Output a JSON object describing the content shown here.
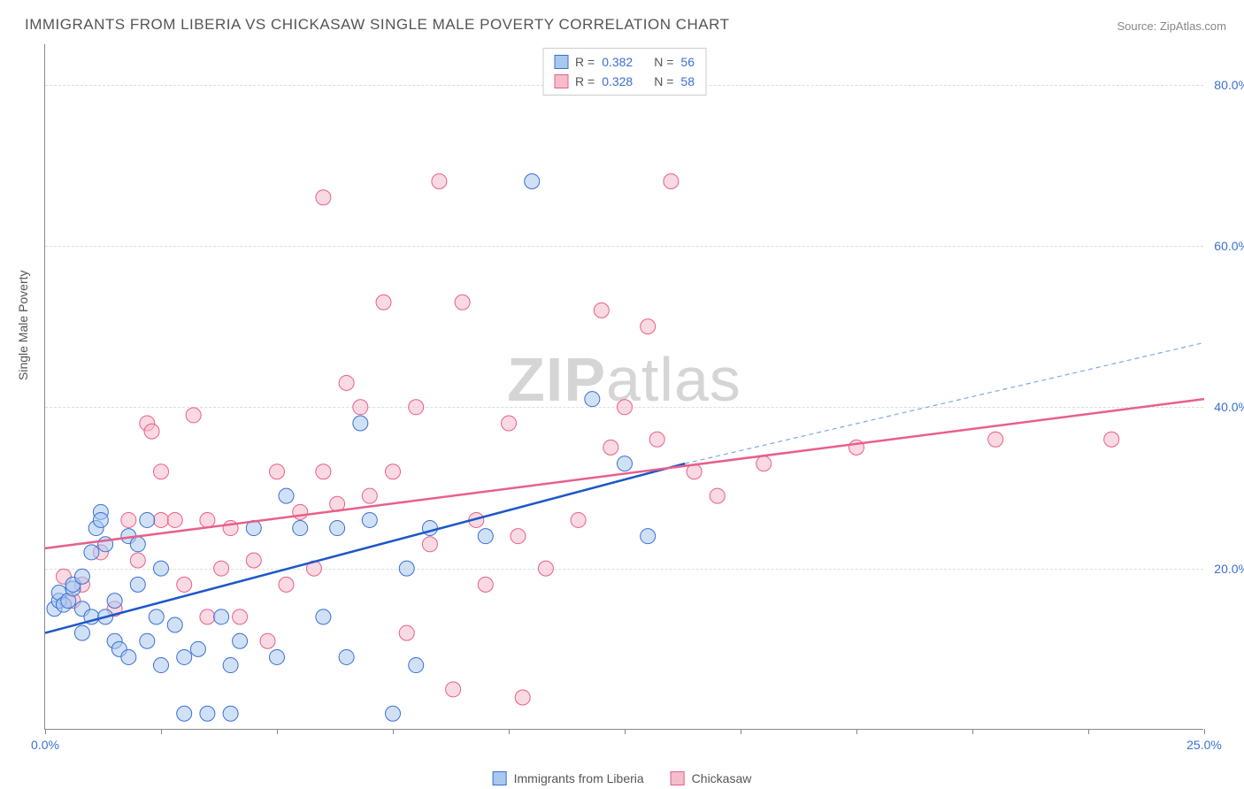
{
  "title": "IMMIGRANTS FROM LIBERIA VS CHICKASAW SINGLE MALE POVERTY CORRELATION CHART",
  "source_prefix": "Source: ",
  "source": "ZipAtlas.com",
  "ylabel": "Single Male Poverty",
  "watermark_bold": "ZIP",
  "watermark_rest": "atlas",
  "chart": {
    "type": "scatter",
    "xlim": [
      0,
      25
    ],
    "ylim": [
      0,
      85
    ],
    "x_ticks": [
      0,
      2.5,
      5,
      7.5,
      10,
      12.5,
      15,
      17.5,
      20,
      22.5,
      25
    ],
    "x_tick_labels": {
      "0": "0.0%",
      "25": "25.0%"
    },
    "y_ticks": [
      20,
      40,
      60,
      80
    ],
    "y_tick_labels": [
      "20.0%",
      "40.0%",
      "60.0%",
      "80.0%"
    ],
    "grid_color": "#dddddd",
    "background_color": "#ffffff",
    "series": [
      {
        "name": "Immigrants from Liberia",
        "fill": "#a9c8ef",
        "stroke": "#3b6fd4",
        "fill_opacity": 0.55,
        "marker_radius": 8.5,
        "R": "0.382",
        "N": "56",
        "trend": {
          "x1": 0,
          "y1": 12,
          "x2": 13.8,
          "y2": 33,
          "color": "#1d57c8",
          "width": 2.5
        },
        "trend_ext": {
          "x1": 13.8,
          "y1": 33,
          "x2": 25,
          "y2": 48,
          "color": "#7fa7e5",
          "width": 1.2,
          "dash": "5,4"
        },
        "points": [
          [
            0.2,
            15
          ],
          [
            0.3,
            16
          ],
          [
            0.3,
            17
          ],
          [
            0.4,
            15.5
          ],
          [
            0.5,
            16
          ],
          [
            0.6,
            17.5
          ],
          [
            0.6,
            18
          ],
          [
            0.8,
            12
          ],
          [
            0.8,
            15
          ],
          [
            0.8,
            19
          ],
          [
            1.0,
            22
          ],
          [
            1.0,
            14
          ],
          [
            1.1,
            25
          ],
          [
            1.2,
            27
          ],
          [
            1.2,
            26
          ],
          [
            1.3,
            23
          ],
          [
            1.3,
            14
          ],
          [
            1.5,
            11
          ],
          [
            1.5,
            16
          ],
          [
            1.6,
            10
          ],
          [
            1.8,
            9
          ],
          [
            1.8,
            24
          ],
          [
            2.0,
            18
          ],
          [
            2.0,
            23
          ],
          [
            2.2,
            26
          ],
          [
            2.2,
            11
          ],
          [
            2.4,
            14
          ],
          [
            2.5,
            20
          ],
          [
            2.5,
            8
          ],
          [
            2.8,
            13
          ],
          [
            3.0,
            9
          ],
          [
            3.0,
            2
          ],
          [
            3.3,
            10
          ],
          [
            3.5,
            2
          ],
          [
            3.8,
            14
          ],
          [
            4.0,
            8
          ],
          [
            4.0,
            2
          ],
          [
            4.2,
            11
          ],
          [
            4.5,
            25
          ],
          [
            5.0,
            9
          ],
          [
            5.2,
            29
          ],
          [
            5.5,
            25
          ],
          [
            6.0,
            14
          ],
          [
            6.3,
            25
          ],
          [
            6.5,
            9
          ],
          [
            6.8,
            38
          ],
          [
            7.0,
            26
          ],
          [
            7.5,
            2
          ],
          [
            7.8,
            20
          ],
          [
            8.0,
            8
          ],
          [
            8.3,
            25
          ],
          [
            9.5,
            24
          ],
          [
            10.5,
            68
          ],
          [
            11.8,
            41
          ],
          [
            12.5,
            33
          ],
          [
            13.0,
            24
          ]
        ]
      },
      {
        "name": "Chickasaw",
        "fill": "#f5bccb",
        "stroke": "#e85f8a",
        "fill_opacity": 0.55,
        "marker_radius": 8.5,
        "R": "0.328",
        "N": "58",
        "trend": {
          "x1": 0,
          "y1": 22.5,
          "x2": 25,
          "y2": 41,
          "color": "#e85f8a",
          "width": 2.5
        },
        "points": [
          [
            0.4,
            19
          ],
          [
            0.6,
            16
          ],
          [
            0.8,
            18
          ],
          [
            1.2,
            22
          ],
          [
            1.5,
            15
          ],
          [
            1.8,
            26
          ],
          [
            2.0,
            21
          ],
          [
            2.2,
            38
          ],
          [
            2.3,
            37
          ],
          [
            2.5,
            26
          ],
          [
            2.5,
            32
          ],
          [
            2.8,
            26
          ],
          [
            3.0,
            18
          ],
          [
            3.2,
            39
          ],
          [
            3.5,
            26
          ],
          [
            3.5,
            14
          ],
          [
            3.8,
            20
          ],
          [
            4.0,
            25
          ],
          [
            4.2,
            14
          ],
          [
            4.5,
            21
          ],
          [
            4.8,
            11
          ],
          [
            5.0,
            32
          ],
          [
            5.2,
            18
          ],
          [
            5.5,
            27
          ],
          [
            5.8,
            20
          ],
          [
            6.0,
            32
          ],
          [
            6.0,
            66
          ],
          [
            6.3,
            28
          ],
          [
            6.5,
            43
          ],
          [
            6.8,
            40
          ],
          [
            7.0,
            29
          ],
          [
            7.3,
            53
          ],
          [
            7.5,
            32
          ],
          [
            7.8,
            12
          ],
          [
            8.0,
            40
          ],
          [
            8.3,
            23
          ],
          [
            8.5,
            68
          ],
          [
            8.8,
            5
          ],
          [
            9.0,
            53
          ],
          [
            9.3,
            26
          ],
          [
            9.5,
            18
          ],
          [
            10.0,
            38
          ],
          [
            10.2,
            24
          ],
          [
            10.3,
            4
          ],
          [
            10.8,
            20
          ],
          [
            11.5,
            26
          ],
          [
            12.0,
            52
          ],
          [
            12.2,
            35
          ],
          [
            12.5,
            40
          ],
          [
            13.0,
            50
          ],
          [
            13.2,
            36
          ],
          [
            13.5,
            68
          ],
          [
            14.0,
            32
          ],
          [
            14.5,
            29
          ],
          [
            15.5,
            33
          ],
          [
            17.5,
            35
          ],
          [
            20.5,
            36
          ],
          [
            23.0,
            36
          ]
        ]
      }
    ]
  },
  "legend_top_label_R": "R =",
  "legend_top_label_N": "N =",
  "legend_bottom": [
    {
      "label": "Immigrants from Liberia",
      "fill": "#a9c8ef",
      "stroke": "#3b6fd4"
    },
    {
      "label": "Chickasaw",
      "fill": "#f5bccb",
      "stroke": "#e85f8a"
    }
  ]
}
